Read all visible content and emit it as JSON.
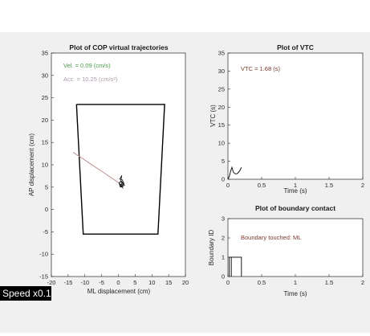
{
  "speed_badge": "Speed x0.1",
  "colors": {
    "figure_bg": "#f0f0f0",
    "axes_bg": "#ffffff",
    "vel_text": "#4a9a4a",
    "acc_text": "#a99aa9",
    "trajectory_line": "#c09090",
    "boundary_text": "#7a3a30",
    "vtc_text": "#7a3a30"
  },
  "cop_plot": {
    "title": "Plot of COP virtual trajectories",
    "xlabel": "ML displacement (cm)",
    "ylabel": "AP displacement (cm)",
    "vel_text": "Vel. = 0.09 (cm/s)",
    "acc_text": "Acc. = 10.25 (cm/s²)"
  },
  "vtc_plot": {
    "title": "Plot of VTC",
    "xlabel": "Time (s)",
    "ylabel": "VTC (s)",
    "annotation": "VTC = 1.68 (s)"
  },
  "boundary_plot": {
    "title": "Plot of boundary contact",
    "xlabel": "Time (s)",
    "ylabel": "Boundary ID",
    "annotation": "Boundary touched: ML"
  },
  "chart_data": [
    {
      "type": "line",
      "title": "Plot of COP virtual trajectories",
      "xlabel": "ML displacement (cm)",
      "ylabel": "AP displacement (cm)",
      "xlim": [
        -20,
        20
      ],
      "ylim": [
        -15,
        35
      ],
      "xticks": [
        -20,
        -15,
        -10,
        -5,
        0,
        5,
        10,
        15,
        20
      ],
      "yticks": [
        -15,
        -10,
        -5,
        0,
        5,
        10,
        15,
        20,
        25,
        30,
        35
      ],
      "boundary_polygon": [
        [
          -12.5,
          23.5
        ],
        [
          13.8,
          23.5
        ],
        [
          11.8,
          -5.5
        ],
        [
          -10.5,
          -5.5
        ],
        [
          -12.5,
          23.5
        ]
      ],
      "virtual_trajectory": [
        [
          -13.5,
          12.8
        ],
        [
          0.5,
          5.8
        ]
      ],
      "cop_trace": [
        [
          0.3,
          5.9
        ],
        [
          0.8,
          5.2
        ],
        [
          1.5,
          5.6
        ],
        [
          1.0,
          6.3
        ],
        [
          0.2,
          6.0
        ],
        [
          0.6,
          5.0
        ],
        [
          1.8,
          5.4
        ],
        [
          1.2,
          6.6
        ],
        [
          0.4,
          6.8
        ],
        [
          1.0,
          7.6
        ],
        [
          0.7,
          6.2
        ],
        [
          1.6,
          5.9
        ],
        [
          0.9,
          5.5
        ],
        [
          1.3,
          4.9
        ],
        [
          0.5,
          5.3
        ],
        [
          1.1,
          6.0
        ]
      ],
      "grid": false
    },
    {
      "type": "line",
      "title": "Plot of VTC",
      "xlabel": "Time (s)",
      "ylabel": "VTC (s)",
      "xlim": [
        0,
        2
      ],
      "ylim": [
        0,
        35
      ],
      "xticks": [
        0,
        0.5,
        1,
        1.5,
        2
      ],
      "yticks": [
        0,
        5,
        10,
        15,
        20,
        25,
        30,
        35
      ],
      "series": [
        {
          "x": [
            0,
            0.02,
            0.04,
            0.06,
            0.08,
            0.1,
            0.12,
            0.14,
            0.16,
            0.18,
            0.2
          ],
          "values": [
            0.0,
            0.8,
            2.3,
            3.3,
            2.0,
            1.6,
            1.5,
            1.6,
            2.0,
            2.5,
            3.3
          ]
        }
      ],
      "grid": false
    },
    {
      "type": "line",
      "title": "Plot of boundary contact",
      "xlabel": "Time (s)",
      "ylabel": "Boundary ID",
      "xlim": [
        0,
        2
      ],
      "ylim": [
        0,
        3
      ],
      "xticks": [
        0,
        0.5,
        1,
        1.5,
        2
      ],
      "yticks": [
        0,
        1,
        2,
        3
      ],
      "series": [
        {
          "x": [
            0.02,
            0.02,
            0.05,
            0.05,
            0.05,
            0.2,
            0.2
          ],
          "values": [
            0,
            1,
            1,
            0,
            1,
            1,
            0
          ]
        }
      ],
      "grid": false
    }
  ]
}
